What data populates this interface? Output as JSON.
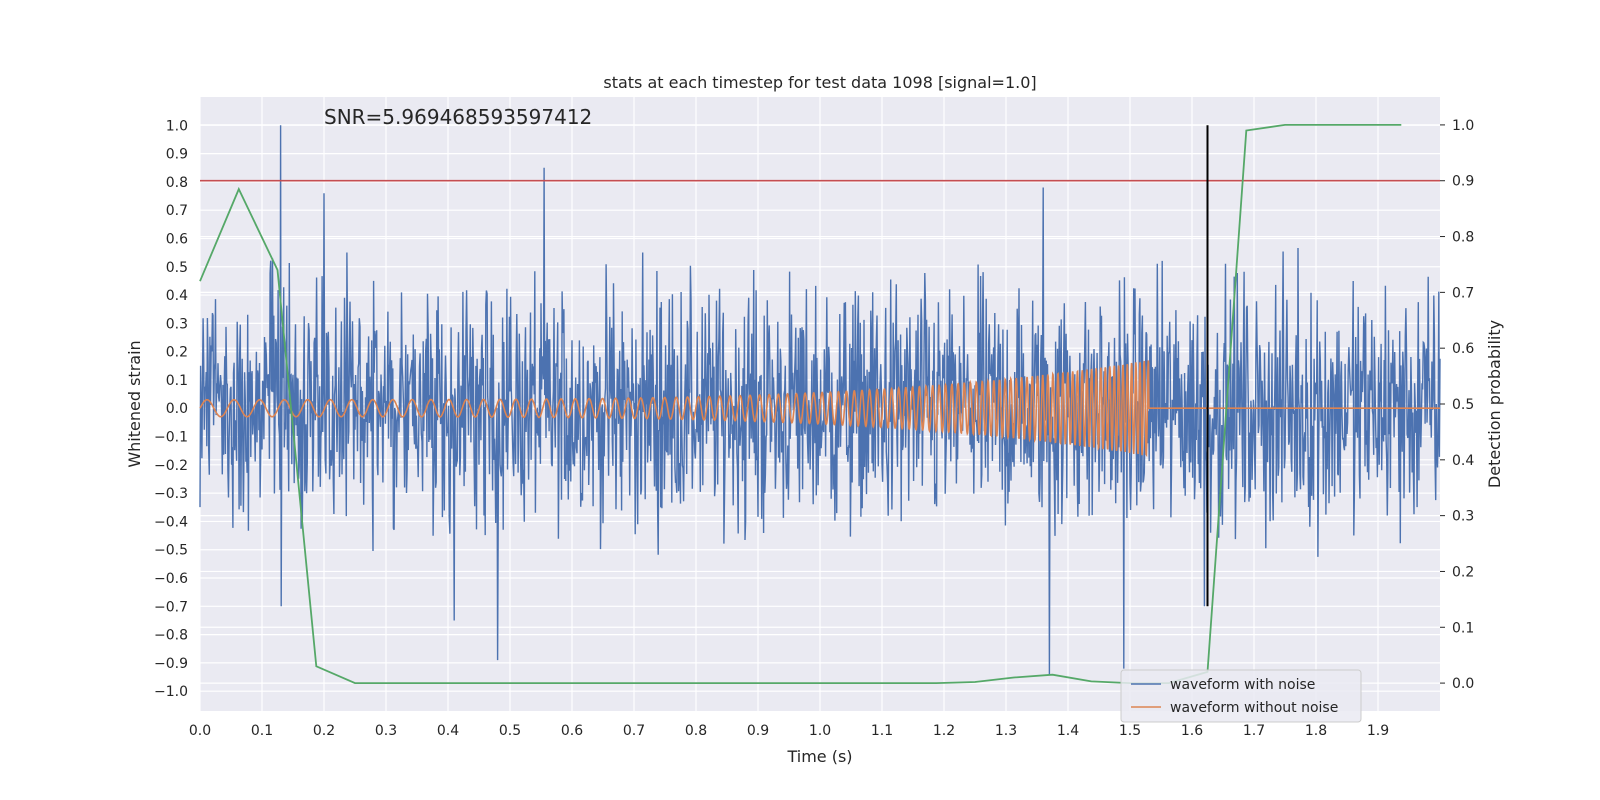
{
  "chart_data": {
    "type": "line",
    "title": "stats at each timestep for test data 1098 [signal=1.0]",
    "xlabel": "Time (s)",
    "ylabel": "Whitened strain",
    "y2label": "Detection probability",
    "annotation": "SNR=5.969468593597412",
    "xlim": [
      0.0,
      2.0
    ],
    "ylim": [
      -1.07,
      1.1
    ],
    "y2lim": [
      -0.05,
      1.05
    ],
    "xticks": [
      "0.0",
      "0.1",
      "0.2",
      "0.3",
      "0.4",
      "0.5",
      "0.6",
      "0.7",
      "0.8",
      "0.9",
      "1.0",
      "1.1",
      "1.2",
      "1.3",
      "1.4",
      "1.5",
      "1.6",
      "1.7",
      "1.8",
      "1.9"
    ],
    "yticks": [
      "1.0",
      "0.9",
      "0.8",
      "0.7",
      "0.6",
      "0.5",
      "0.4",
      "0.3",
      "0.2",
      "0.1",
      "0.0",
      "−0.1",
      "−0.2",
      "−0.3",
      "−0.4",
      "−0.5",
      "−0.6",
      "−0.7",
      "−0.8",
      "−0.9",
      "−1.0"
    ],
    "y2ticks": [
      "1.0",
      "0.9",
      "0.8",
      "0.7",
      "0.6",
      "0.5",
      "0.4",
      "0.3",
      "0.2",
      "0.1",
      "0.0"
    ],
    "threshold_y2": 0.9,
    "event_time": 1.625,
    "grid": true,
    "legend_position": "lower-right",
    "series": [
      {
        "name": "waveform with noise",
        "color": "#4c72b0",
        "axis": "left",
        "peaks": [
          {
            "x": 0.13,
            "y": 1.0
          },
          {
            "x": 0.131,
            "y": -0.7
          },
          {
            "x": 0.555,
            "y": 0.85
          },
          {
            "x": 0.48,
            "y": -0.89
          },
          {
            "x": 1.37,
            "y": -0.94
          },
          {
            "x": 1.36,
            "y": 0.78
          },
          {
            "x": 1.49,
            "y": -0.92
          },
          {
            "x": 0.41,
            "y": -0.75
          },
          {
            "x": 0.2,
            "y": 0.76
          },
          {
            "x": 1.62,
            "y": -0.7
          }
        ]
      },
      {
        "name": "waveform without noise",
        "color": "#dd8452",
        "axis": "left",
        "chirp_end": 1.53,
        "amplitude_start": 0.03,
        "amplitude_end": 0.17
      },
      {
        "name": "Detection probability",
        "color": "#55a868",
        "axis": "right",
        "x": [
          0.0,
          0.0625,
          0.125,
          0.1875,
          0.25,
          0.3125,
          0.375,
          0.4375,
          0.5,
          0.5625,
          0.625,
          0.6875,
          0.75,
          0.8125,
          0.875,
          0.9375,
          1.0,
          1.0625,
          1.125,
          1.1875,
          1.25,
          1.3125,
          1.375,
          1.4375,
          1.5,
          1.5625,
          1.625,
          1.6875,
          1.75,
          1.8125,
          1.875,
          1.9375
        ],
        "y": [
          0.72,
          0.885,
          0.74,
          0.03,
          0.0,
          0.0,
          0.0,
          0.0,
          0.0,
          0.0,
          0.0,
          0.0,
          0.0,
          0.0,
          0.0,
          0.0,
          0.0,
          0.0,
          0.0,
          0.0,
          0.002,
          0.01,
          0.015,
          0.003,
          0.0,
          0.0,
          0.02,
          0.99,
          1.0,
          1.0,
          1.0,
          1.0
        ]
      }
    ],
    "colors": {
      "background": "#eaeaf2",
      "grid": "#ffffff",
      "threshold": "#c44e52",
      "event_line": "#000000"
    }
  }
}
